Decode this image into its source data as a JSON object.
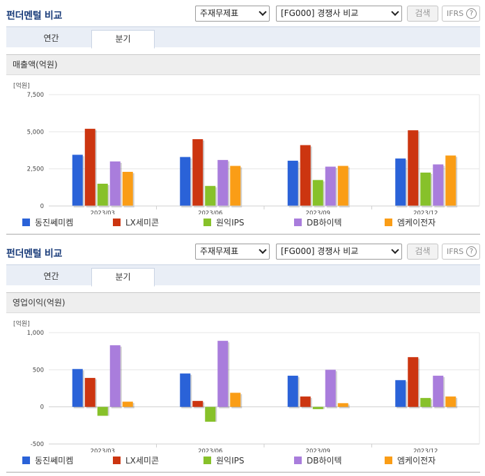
{
  "panels": [
    {
      "title": "펀더멘털 비교",
      "select_type": "주재무제표",
      "select_company": "[FG000] 경쟁사 비교",
      "search_label": "검색",
      "ifrs_label": "IFRS",
      "help_label": "?",
      "tab_year": "연간",
      "tab_quarter": "분기",
      "metric_title": "매출액(억원)"
    },
    {
      "title": "펀더멘털 비교",
      "select_type": "주재무제표",
      "select_company": "[FG000] 경쟁사 비교",
      "search_label": "검색",
      "ifrs_label": "IFRS",
      "help_label": "?",
      "tab_year": "연간",
      "tab_quarter": "분기",
      "metric_title": "영업이익(억원)"
    }
  ],
  "legend_colors": [
    "#2a62d8",
    "#cc3510",
    "#87c12a",
    "#a97ddc",
    "#fa9d16"
  ],
  "chart_data": [
    {
      "type": "bar",
      "title": "매출액(억원)",
      "ylabel": "[억원]",
      "ylim": [
        0,
        7500
      ],
      "yticks": [
        0,
        2500,
        5000,
        7500
      ],
      "ytick_labels": [
        "0",
        "2,500",
        "5,000",
        "7,500"
      ],
      "grid": true,
      "legend_position": "bottom",
      "categories": [
        "2023/03",
        "2023/06",
        "2023/09",
        "2023/12"
      ],
      "series": [
        {
          "name": "동진쎄미켐",
          "values": [
            3450,
            3300,
            3050,
            3200
          ]
        },
        {
          "name": "LX세미콘",
          "values": [
            5200,
            4500,
            4100,
            5100
          ]
        },
        {
          "name": "원익IPS",
          "values": [
            1500,
            1350,
            1750,
            2250
          ]
        },
        {
          "name": "DB하이텍",
          "values": [
            3000,
            3100,
            2650,
            2800
          ]
        },
        {
          "name": "엠케이전자",
          "values": [
            2300,
            2700,
            2700,
            3400
          ]
        }
      ]
    },
    {
      "type": "bar",
      "title": "영업이익(억원)",
      "ylabel": "[억원]",
      "ylim": [
        -500,
        1000
      ],
      "yticks": [
        -500,
        0,
        500,
        1000
      ],
      "ytick_labels": [
        "-500",
        "0",
        "500",
        "1,000"
      ],
      "grid": true,
      "legend_position": "bottom",
      "categories": [
        "2023/03",
        "2023/06",
        "2023/09",
        "2023/12"
      ],
      "series": [
        {
          "name": "동진쎄미켐",
          "values": [
            510,
            450,
            420,
            360
          ]
        },
        {
          "name": "LX세미콘",
          "values": [
            390,
            80,
            140,
            670
          ]
        },
        {
          "name": "원익IPS",
          "values": [
            -120,
            -200,
            -30,
            120
          ]
        },
        {
          "name": "DB하이텍",
          "values": [
            830,
            890,
            500,
            420
          ]
        },
        {
          "name": "엠케이전자",
          "values": [
            70,
            190,
            50,
            140
          ]
        }
      ]
    }
  ]
}
